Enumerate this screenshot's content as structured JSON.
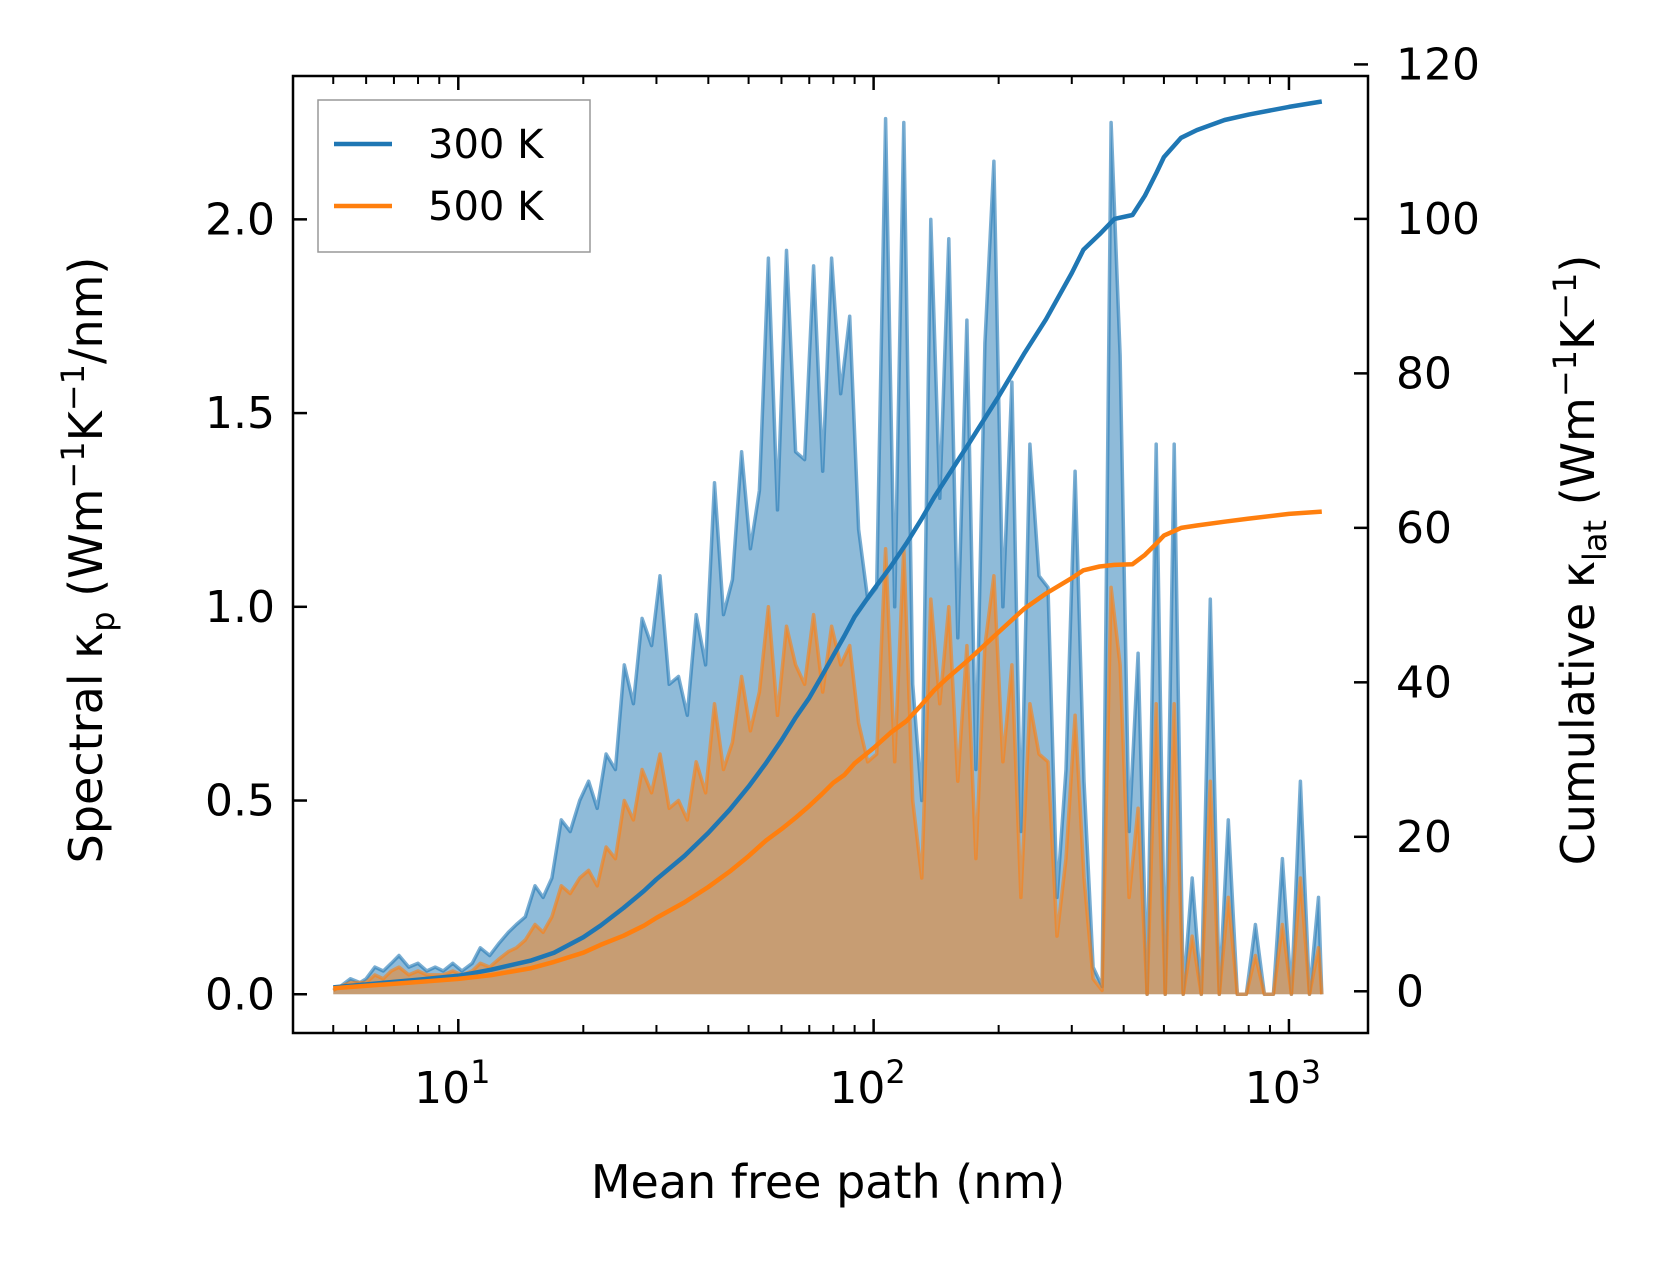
{
  "chart_data": {
    "type": "line",
    "xscale": "log",
    "xlabel": "Mean free path (nm)",
    "ylabel_left": {
      "prefix": "Spectral κ",
      "sub": "p",
      "units": " (Wm",
      "e1": "−1",
      "mid": "K",
      "e2": "−1",
      "end": "/nm)"
    },
    "ylabel_right": {
      "prefix": "Cumulative κ",
      "sub": "lat",
      "units": " (Wm",
      "e1": "−1",
      "mid": "K",
      "e2": "−1",
      "end": ")"
    },
    "xlim": [
      4.0,
      1550
    ],
    "ylim_left": [
      -0.1,
      2.37
    ],
    "ylim_right": [
      -5.4,
      118.5
    ],
    "x_ticks": [
      {
        "value": 10,
        "base": "10",
        "exp": "1"
      },
      {
        "value": 100,
        "base": "10",
        "exp": "2"
      },
      {
        "value": 1000,
        "base": "10",
        "exp": "3"
      }
    ],
    "y_left_ticks": [
      {
        "value": 0.0,
        "label": "0.0"
      },
      {
        "value": 0.5,
        "label": "0.5"
      },
      {
        "value": 1.0,
        "label": "1.0"
      },
      {
        "value": 1.5,
        "label": "1.5"
      },
      {
        "value": 2.0,
        "label": "2.0"
      }
    ],
    "y_right_ticks": [
      {
        "value": 0,
        "label": "0"
      },
      {
        "value": 20,
        "label": "20"
      },
      {
        "value": 40,
        "label": "40"
      },
      {
        "value": 60,
        "label": "60"
      },
      {
        "value": 80,
        "label": "80"
      },
      {
        "value": 100,
        "label": "100"
      },
      {
        "value": 120,
        "label": "120"
      }
    ],
    "legend": {
      "position": "top-left",
      "entries": [
        "300 K",
        "500 K"
      ]
    },
    "colors": {
      "t300": "#1f77b4",
      "t500": "#ff7f0e"
    },
    "series": [
      {
        "name": "300 K",
        "spectral": {
          "x": [
            5,
            5.2,
            5.5,
            5.8,
            6,
            6.3,
            6.6,
            6.9,
            7.2,
            7.6,
            8,
            8.4,
            8.8,
            9.2,
            9.7,
            10.2,
            10.8,
            11.3,
            11.9,
            12.5,
            13.2,
            13.8,
            14.5,
            15.3,
            16,
            16.8,
            17.7,
            18.6,
            19.6,
            20.6,
            21.6,
            22.7,
            23.9,
            25.1,
            26.4,
            27.7,
            29.2,
            30.6,
            32.2,
            33.9,
            35.6,
            37.4,
            39.4,
            41.4,
            43.5,
            45.7,
            48.1,
            50.5,
            53.1,
            55.8,
            58.7,
            61.7,
            64.9,
            68.2,
            71.7,
            75.4,
            79.2,
            83.3,
            87.6,
            92,
            96.8,
            101.7,
            106.9,
            112.4,
            118.2,
            124.2,
            130.6,
            137.3,
            144.3,
            151.7,
            159.5,
            167.7,
            176.3,
            185.3,
            194.8,
            204.8,
            215.3,
            226.3,
            237.9,
            250.1,
            262.9,
            276.4,
            290.6,
            305.5,
            321.1,
            337.6,
            354.9,
            373,
            392.2,
            412.3,
            433.4,
            455.6,
            479,
            503.5,
            529.3,
            556.5,
            585,
            615,
            646.5,
            679.7,
            714.5,
            751.1,
            789.6,
            830.1,
            872.6,
            917.4,
            964.4,
            1013.8,
            1065.8,
            1120.4,
            1177.8,
            1200
          ],
          "y": [
            0.01,
            0.02,
            0.04,
            0.03,
            0.04,
            0.07,
            0.06,
            0.08,
            0.1,
            0.07,
            0.08,
            0.06,
            0.07,
            0.06,
            0.08,
            0.06,
            0.08,
            0.12,
            0.1,
            0.13,
            0.16,
            0.18,
            0.2,
            0.28,
            0.25,
            0.3,
            0.45,
            0.42,
            0.5,
            0.55,
            0.48,
            0.62,
            0.58,
            0.85,
            0.75,
            0.97,
            0.9,
            1.08,
            0.8,
            0.82,
            0.72,
            0.98,
            0.85,
            1.32,
            0.98,
            1.07,
            1.4,
            1.15,
            1.3,
            1.9,
            1.25,
            1.92,
            1.4,
            1.38,
            1.88,
            1.35,
            1.9,
            1.55,
            1.75,
            1.2,
            1.02,
            1.05,
            2.26,
            1.0,
            2.25,
            0.8,
            0.5,
            2.0,
            1.28,
            1.95,
            0.92,
            1.74,
            0.58,
            1.68,
            2.15,
            1.0,
            1.58,
            0.42,
            1.42,
            1.08,
            1.05,
            0.25,
            0.58,
            1.35,
            0.55,
            0.07,
            0.02,
            2.25,
            1.65,
            0.42,
            0.88,
            0.0,
            1.42,
            0.0,
            1.42,
            0.0,
            0.3,
            0.0,
            1.02,
            0.0,
            0.45,
            0.0,
            0.0,
            0.18,
            0.0,
            0.0,
            0.35,
            0.0,
            0.55,
            0.0,
            0.25,
            0.0
          ]
        },
        "cumulative": {
          "x": [
            5,
            8,
            10,
            12,
            15,
            17,
            20,
            22,
            25,
            28,
            30,
            35,
            40,
            45,
            50,
            55,
            60,
            65,
            70,
            75,
            80,
            85,
            90,
            100,
            110,
            120,
            130,
            140,
            150,
            170,
            200,
            230,
            260,
            300,
            320,
            350,
            380,
            420,
            450,
            480,
            500,
            550,
            600,
            700,
            800,
            1000,
            1200
          ],
          "y": [
            0.5,
            1.5,
            2.0,
            2.8,
            4.0,
            5.0,
            7.0,
            8.5,
            10.8,
            13.0,
            14.5,
            17.5,
            20.5,
            23.5,
            26.5,
            29.5,
            32.5,
            35.5,
            38.0,
            40.8,
            43.5,
            46.0,
            48.5,
            52.0,
            55.0,
            58.0,
            61.0,
            64.0,
            66.5,
            71.0,
            77.0,
            82.5,
            87.0,
            93.0,
            96.0,
            98.0,
            100.0,
            100.5,
            103.0,
            106.0,
            108.0,
            110.5,
            111.5,
            112.8,
            113.5,
            114.5,
            115.2
          ]
        }
      },
      {
        "name": "500 K",
        "spectral": {
          "x": [
            5,
            5.2,
            5.5,
            5.8,
            6,
            6.3,
            6.6,
            6.9,
            7.2,
            7.6,
            8,
            8.4,
            8.8,
            9.2,
            9.7,
            10.2,
            10.8,
            11.3,
            11.9,
            12.5,
            13.2,
            13.8,
            14.5,
            15.3,
            16,
            16.8,
            17.7,
            18.6,
            19.6,
            20.6,
            21.6,
            22.7,
            23.9,
            25.1,
            26.4,
            27.7,
            29.2,
            30.6,
            32.2,
            33.9,
            35.6,
            37.4,
            39.4,
            41.4,
            43.5,
            45.7,
            48.1,
            50.5,
            53.1,
            55.8,
            58.7,
            61.7,
            64.9,
            68.2,
            71.7,
            75.4,
            79.2,
            83.3,
            87.6,
            92,
            96.8,
            101.7,
            106.9,
            112.4,
            118.2,
            124.2,
            130.6,
            137.3,
            144.3,
            151.7,
            159.5,
            167.7,
            176.3,
            185.3,
            194.8,
            204.8,
            215.3,
            226.3,
            237.9,
            250.1,
            262.9,
            276.4,
            290.6,
            305.5,
            321.1,
            337.6,
            354.9,
            373,
            392.2,
            412.3,
            433.4,
            455.6,
            479,
            503.5,
            529.3,
            556.5,
            585,
            615,
            646.5,
            679.7,
            714.5,
            751.1,
            789.6,
            830.1,
            872.6,
            917.4,
            964.4,
            1013.8,
            1065.8,
            1120.4,
            1177.8,
            1200
          ],
          "y": [
            0.01,
            0.02,
            0.03,
            0.03,
            0.03,
            0.05,
            0.04,
            0.06,
            0.07,
            0.05,
            0.06,
            0.05,
            0.05,
            0.05,
            0.06,
            0.05,
            0.06,
            0.08,
            0.07,
            0.09,
            0.11,
            0.12,
            0.14,
            0.18,
            0.16,
            0.2,
            0.28,
            0.26,
            0.3,
            0.32,
            0.28,
            0.38,
            0.35,
            0.5,
            0.45,
            0.58,
            0.52,
            0.62,
            0.48,
            0.5,
            0.45,
            0.6,
            0.52,
            0.75,
            0.58,
            0.65,
            0.82,
            0.68,
            0.78,
            1.0,
            0.72,
            0.95,
            0.85,
            0.8,
            0.98,
            0.78,
            0.95,
            0.85,
            0.9,
            0.7,
            0.6,
            0.62,
            1.15,
            0.6,
            1.15,
            0.5,
            0.3,
            1.02,
            0.75,
            1.0,
            0.55,
            0.9,
            0.35,
            0.9,
            1.08,
            0.6,
            0.85,
            0.25,
            0.75,
            0.62,
            0.6,
            0.15,
            0.35,
            0.72,
            0.3,
            0.04,
            0.01,
            1.05,
            0.85,
            0.25,
            0.48,
            0.0,
            0.75,
            0.0,
            0.75,
            0.0,
            0.15,
            0.0,
            0.55,
            0.0,
            0.25,
            0.0,
            0.0,
            0.1,
            0.0,
            0.0,
            0.18,
            0.0,
            0.3,
            0.0,
            0.12,
            0.0
          ]
        },
        "cumulative": {
          "x": [
            5,
            8,
            10,
            12,
            15,
            17,
            20,
            22,
            25,
            28,
            30,
            35,
            40,
            45,
            50,
            55,
            60,
            65,
            70,
            75,
            80,
            85,
            90,
            100,
            110,
            120,
            130,
            140,
            150,
            170,
            200,
            230,
            260,
            300,
            320,
            350,
            380,
            420,
            450,
            480,
            500,
            550,
            600,
            700,
            800,
            1000,
            1200
          ],
          "y": [
            0.4,
            1.2,
            1.6,
            2.1,
            3.0,
            3.8,
            5.0,
            6.0,
            7.2,
            8.5,
            9.5,
            11.5,
            13.5,
            15.5,
            17.5,
            19.5,
            21.0,
            22.5,
            24.0,
            25.5,
            27.0,
            28.0,
            29.5,
            31.5,
            33.5,
            35.0,
            37.0,
            39.0,
            40.5,
            43.0,
            46.5,
            49.5,
            51.5,
            53.5,
            54.5,
            55.0,
            55.2,
            55.3,
            56.5,
            58.0,
            59.0,
            60.0,
            60.3,
            60.8,
            61.2,
            61.8,
            62.1
          ]
        }
      }
    ]
  }
}
